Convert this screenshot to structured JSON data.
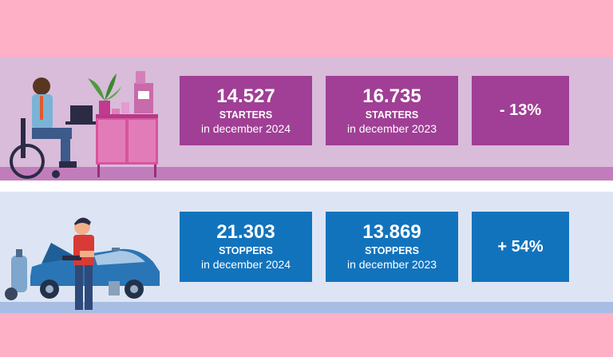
{
  "starters": {
    "card1": {
      "number": "14.527",
      "label": "STARTERS",
      "period": "in december 2024"
    },
    "card2": {
      "number": "16.735",
      "label": "STARTERS",
      "period": "in december 2023"
    },
    "change": "- 13%"
  },
  "stoppers": {
    "card1": {
      "number": "21.303",
      "label": "STOPPERS",
      "period": "in december 2024"
    },
    "card2": {
      "number": "13.869",
      "label": "STOPPERS",
      "period": "in december 2023"
    },
    "change": "+ 54%"
  },
  "colors": {
    "background": "#fdb0c6",
    "starters_card": "#a03f95",
    "stoppers_card": "#1273bd",
    "starters_band": "#d8bcd9",
    "stoppers_band": "#dde5f4"
  },
  "icons": [
    "wheelchair-worker-illustration",
    "coffee-cabinet-illustration",
    "plant-icon",
    "coffee-machine-icon",
    "mechanic-illustration",
    "car-icon",
    "gas-cylinder-icon"
  ]
}
